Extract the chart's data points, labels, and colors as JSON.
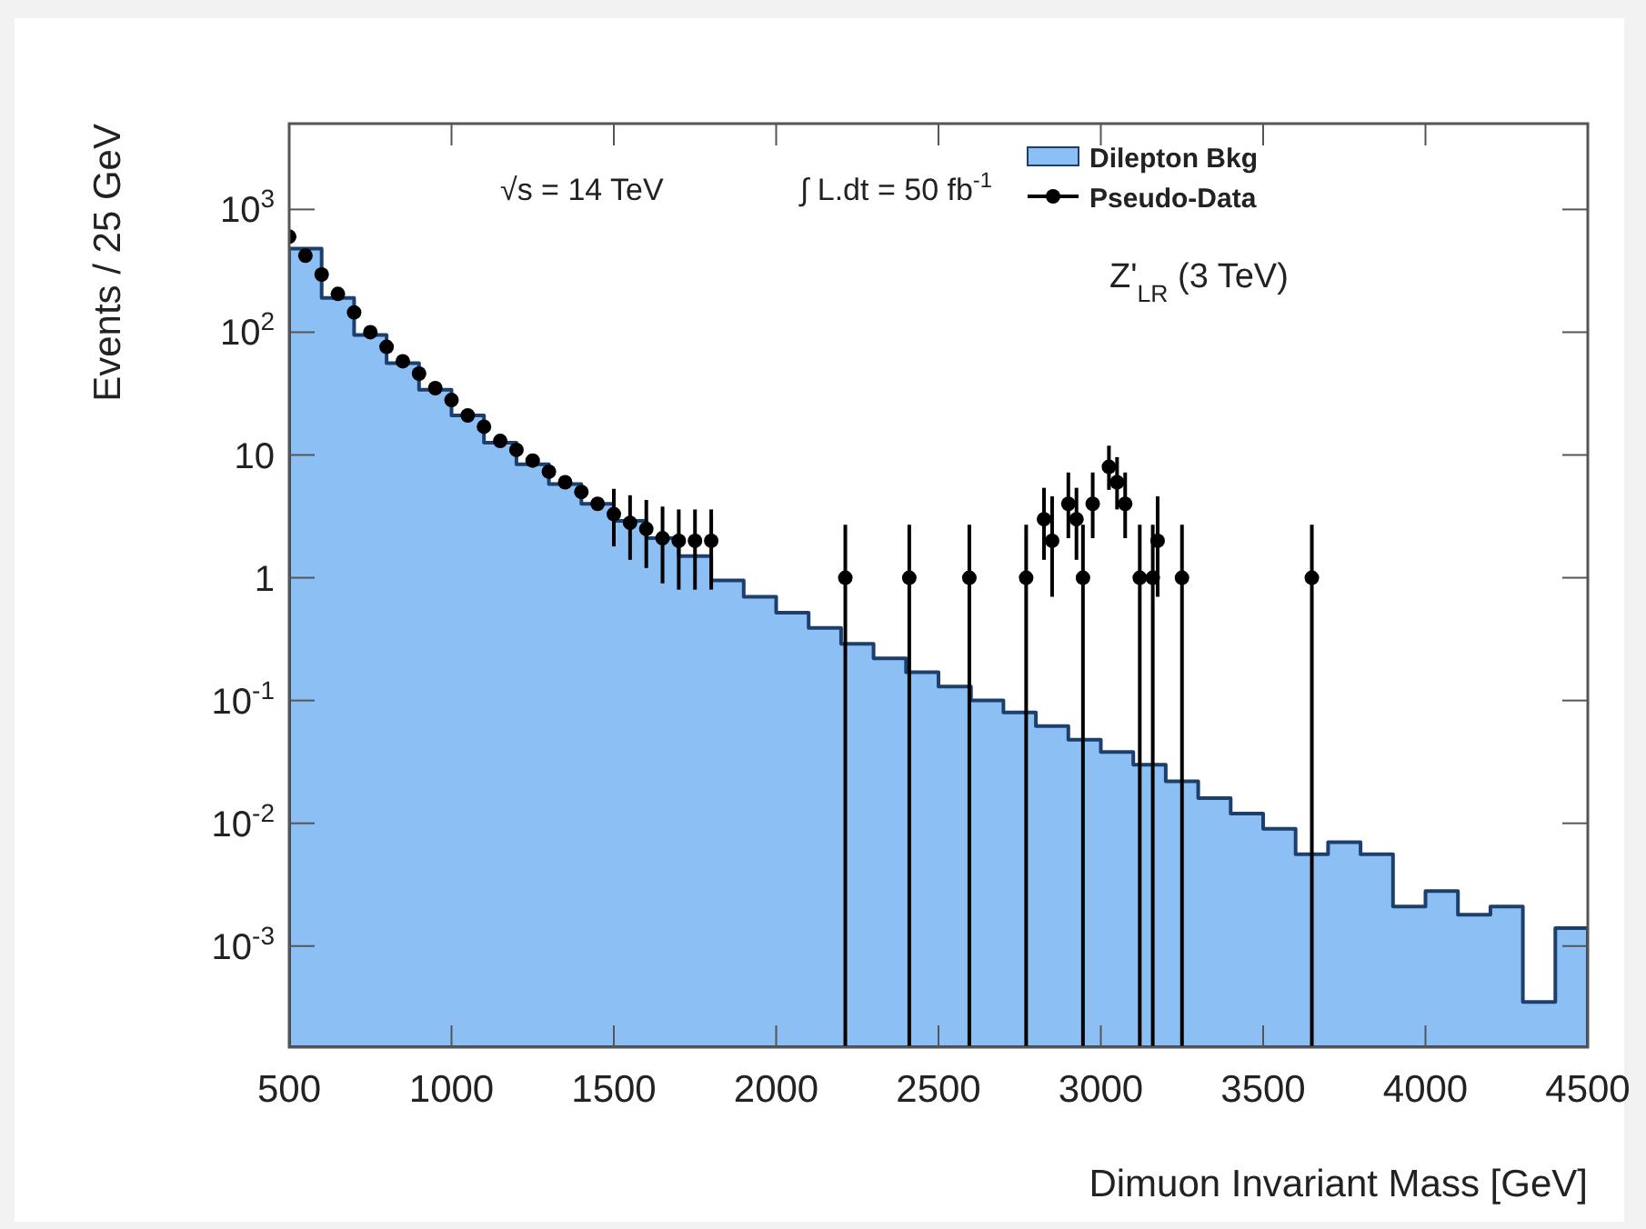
{
  "chart_data": {
    "type": "histogram",
    "xlabel": "Dimuon Invariant Mass [GeV]",
    "ylabel": "Events / 25 GeV",
    "annotations": [
      "√s = 14 TeV",
      "∫ L.dt = 50 fb$^{-1}$",
      "Z'$_{LR}$ (3 TeV)"
    ],
    "log": "y",
    "legend": "top right",
    "marker": "circle",
    "xlim": [
      500,
      4500
    ],
    "xticks": [
      500,
      1000,
      1500,
      2000,
      2500,
      3000,
      3500,
      4000,
      4500
    ],
    "ylim": [
      0.00015,
      5000
    ],
    "yticks": [
      {
        "value": 0.001,
        "label": "10$^{-3}$"
      },
      {
        "value": 0.01,
        "label": "10$^{-2}$"
      },
      {
        "value": 0.1,
        "label": "10$^{-1}$"
      },
      1,
      10,
      {
        "value": 100,
        "label": "10$^{2}$"
      },
      {
        "value": 1000,
        "label": "10$^{3}$"
      }
    ],
    "bins": [
      500,
      600,
      700,
      800,
      900,
      1000,
      1100,
      1200,
      1300,
      1400,
      1500,
      1600,
      1700,
      1800,
      1900,
      2000,
      2100,
      2200,
      2300,
      2400,
      2500,
      2600,
      2700,
      2800,
      2900,
      3000,
      3100,
      3200,
      3300,
      3400,
      3500,
      3600,
      3700,
      3800,
      3900,
      4000,
      4100,
      4200,
      4300,
      4400,
      4500
    ],
    "series": [
      {
        "name": "Dilepton Bkg",
        "color": "#8cc0f4",
        "values": [
          480,
          190,
          95,
          56,
          34,
          21,
          12.6,
          8.4,
          5.8,
          4.0,
          2.9,
          2.1,
          1.5,
          0.95,
          0.7,
          0.52,
          0.39,
          0.29,
          0.22,
          0.17,
          0.13,
          0.1,
          0.08,
          0.062,
          0.048,
          0.038,
          0.03,
          0.022,
          0.016,
          0.012,
          0.009,
          0.0056,
          0.007,
          0.0056,
          0.0021,
          0.0028,
          0.0018,
          0.0021,
          0.00035,
          0.0014
        ]
      },
      {
        "name": "Pseudo-Data",
        "type": "scatter",
        "color": "#000000",
        "x": [
          500,
          550,
          600,
          650,
          700,
          750,
          800,
          850,
          900,
          950,
          1000,
          1050,
          1100,
          1150,
          1200,
          1250,
          1300,
          1350,
          1400,
          1450,
          1500,
          1550,
          1600,
          1650,
          1700,
          1750,
          1800,
          2213,
          2410,
          2595,
          2770,
          2825,
          2850,
          2900,
          2925,
          2945,
          2975,
          3025,
          3050,
          3075,
          3120,
          3160,
          3175,
          3250,
          3650
        ],
        "values": [
          600,
          420,
          295,
          205,
          145,
          100,
          76,
          58,
          46,
          35,
          28,
          21,
          17,
          13,
          11,
          9,
          7.3,
          6,
          5,
          4,
          3.3,
          2.8,
          2.5,
          2.1,
          2,
          2,
          2,
          1,
          1,
          1,
          1,
          3,
          2,
          4,
          3,
          1,
          4,
          8,
          6,
          4,
          1,
          1,
          2,
          1,
          1
        ],
        "errors": [
          null,
          null,
          null,
          null,
          null,
          null,
          null,
          null,
          null,
          null,
          null,
          null,
          null,
          null,
          null,
          null,
          null,
          null,
          null,
          null,
          [
            1.8,
            5.3
          ],
          [
            1.4,
            4.7
          ],
          [
            1.2,
            4.3
          ],
          [
            0.9,
            3.8
          ],
          [
            0.8,
            3.6
          ],
          [
            0.8,
            3.6
          ],
          [
            0.8,
            3.6
          ],
          [
            0.00015,
            2.7
          ],
          [
            0.00015,
            2.7
          ],
          [
            0.00015,
            2.7
          ],
          [
            0.00015,
            2.7
          ],
          [
            1.4,
            5.4
          ],
          [
            0.7,
            4.6
          ],
          [
            2.1,
            7.2
          ],
          [
            1.4,
            5.4
          ],
          [
            0.00015,
            2.7
          ],
          [
            2.1,
            7.2
          ],
          [
            5.2,
            11.9
          ],
          [
            3.6,
            9.6
          ],
          [
            2.1,
            7.2
          ],
          [
            0.00015,
            2.7
          ],
          [
            0.00015,
            2.7
          ],
          [
            0.7,
            4.6
          ],
          [
            0.00015,
            2.7
          ],
          [
            0.00015,
            2.7
          ]
        ]
      }
    ]
  }
}
